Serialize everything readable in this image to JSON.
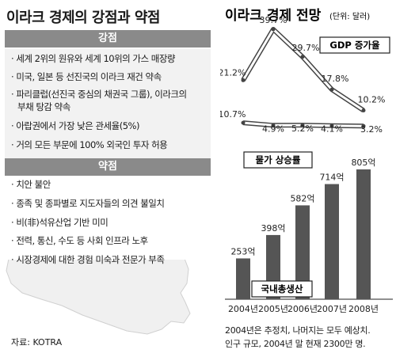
{
  "left": {
    "title": "이라크 경제의 강점과 약점",
    "strength_header": "강점",
    "strengths": [
      "세계 2위의 원유와 세계 10위의 가스 매장량",
      "미국, 일본 등 선진국의 이라크 재건 약속",
      "파리클럽(선진국 중심의 채권국 그룹), 이라크의",
      "부채 탕감 약속",
      "아랍권에서 가장 낮은 관세율(5%)",
      "거의 모든 부문에 100% 외국인 투자 허용"
    ],
    "weakness_header": "약점",
    "weaknesses": [
      "치안 불안",
      "종족 및 종파별로 지도자들의 의견 불일치",
      "비(非)석유산업 기반 미미",
      "전력, 통신, 수도 등 사회 인프라 노후",
      "시장경제에 대한 경험 미숙과 전문가 부족"
    ],
    "source": "자료: KOTRA",
    "box_color": "#f2f2f2",
    "header_color": "#8a8a8a"
  },
  "right": {
    "title": "이라크 경제 전망",
    "unit": "(단위: 달러)",
    "notes": [
      "2004년은 추정치, 나머지는 모두 예상치.",
      "인구 규모, 2004년 말 현재 2300만 명."
    ]
  },
  "chart_data": {
    "type": "bar",
    "title": "이라크 경제 전망",
    "unit": "(단위: 달러)",
    "categories": [
      "2004년",
      "2005년",
      "2006년",
      "2007년",
      "2008년"
    ],
    "series": [
      {
        "name": "국내총생산",
        "type": "bar",
        "values": [
          253,
          398,
          582,
          714,
          805
        ],
        "labels": [
          "253억",
          "398억",
          "582억",
          "714억",
          "805억"
        ],
        "color": "#555555"
      },
      {
        "name": "GDP 증가율",
        "type": "line",
        "values": [
          21.2,
          39.7,
          29.7,
          17.8,
          10.2
        ],
        "labels": [
          "21.2%",
          "39.7%",
          "29.7%",
          "17.8%",
          "10.2%"
        ],
        "color": "#444444"
      },
      {
        "name": "물가 상승률",
        "type": "line",
        "values": [
          10.7,
          4.9,
          5.2,
          4.1,
          3.2
        ],
        "labels": [
          "10.7%",
          "4.9%",
          "5.2%",
          "4.1%",
          "3.2%"
        ],
        "color": "#444444"
      }
    ]
  }
}
